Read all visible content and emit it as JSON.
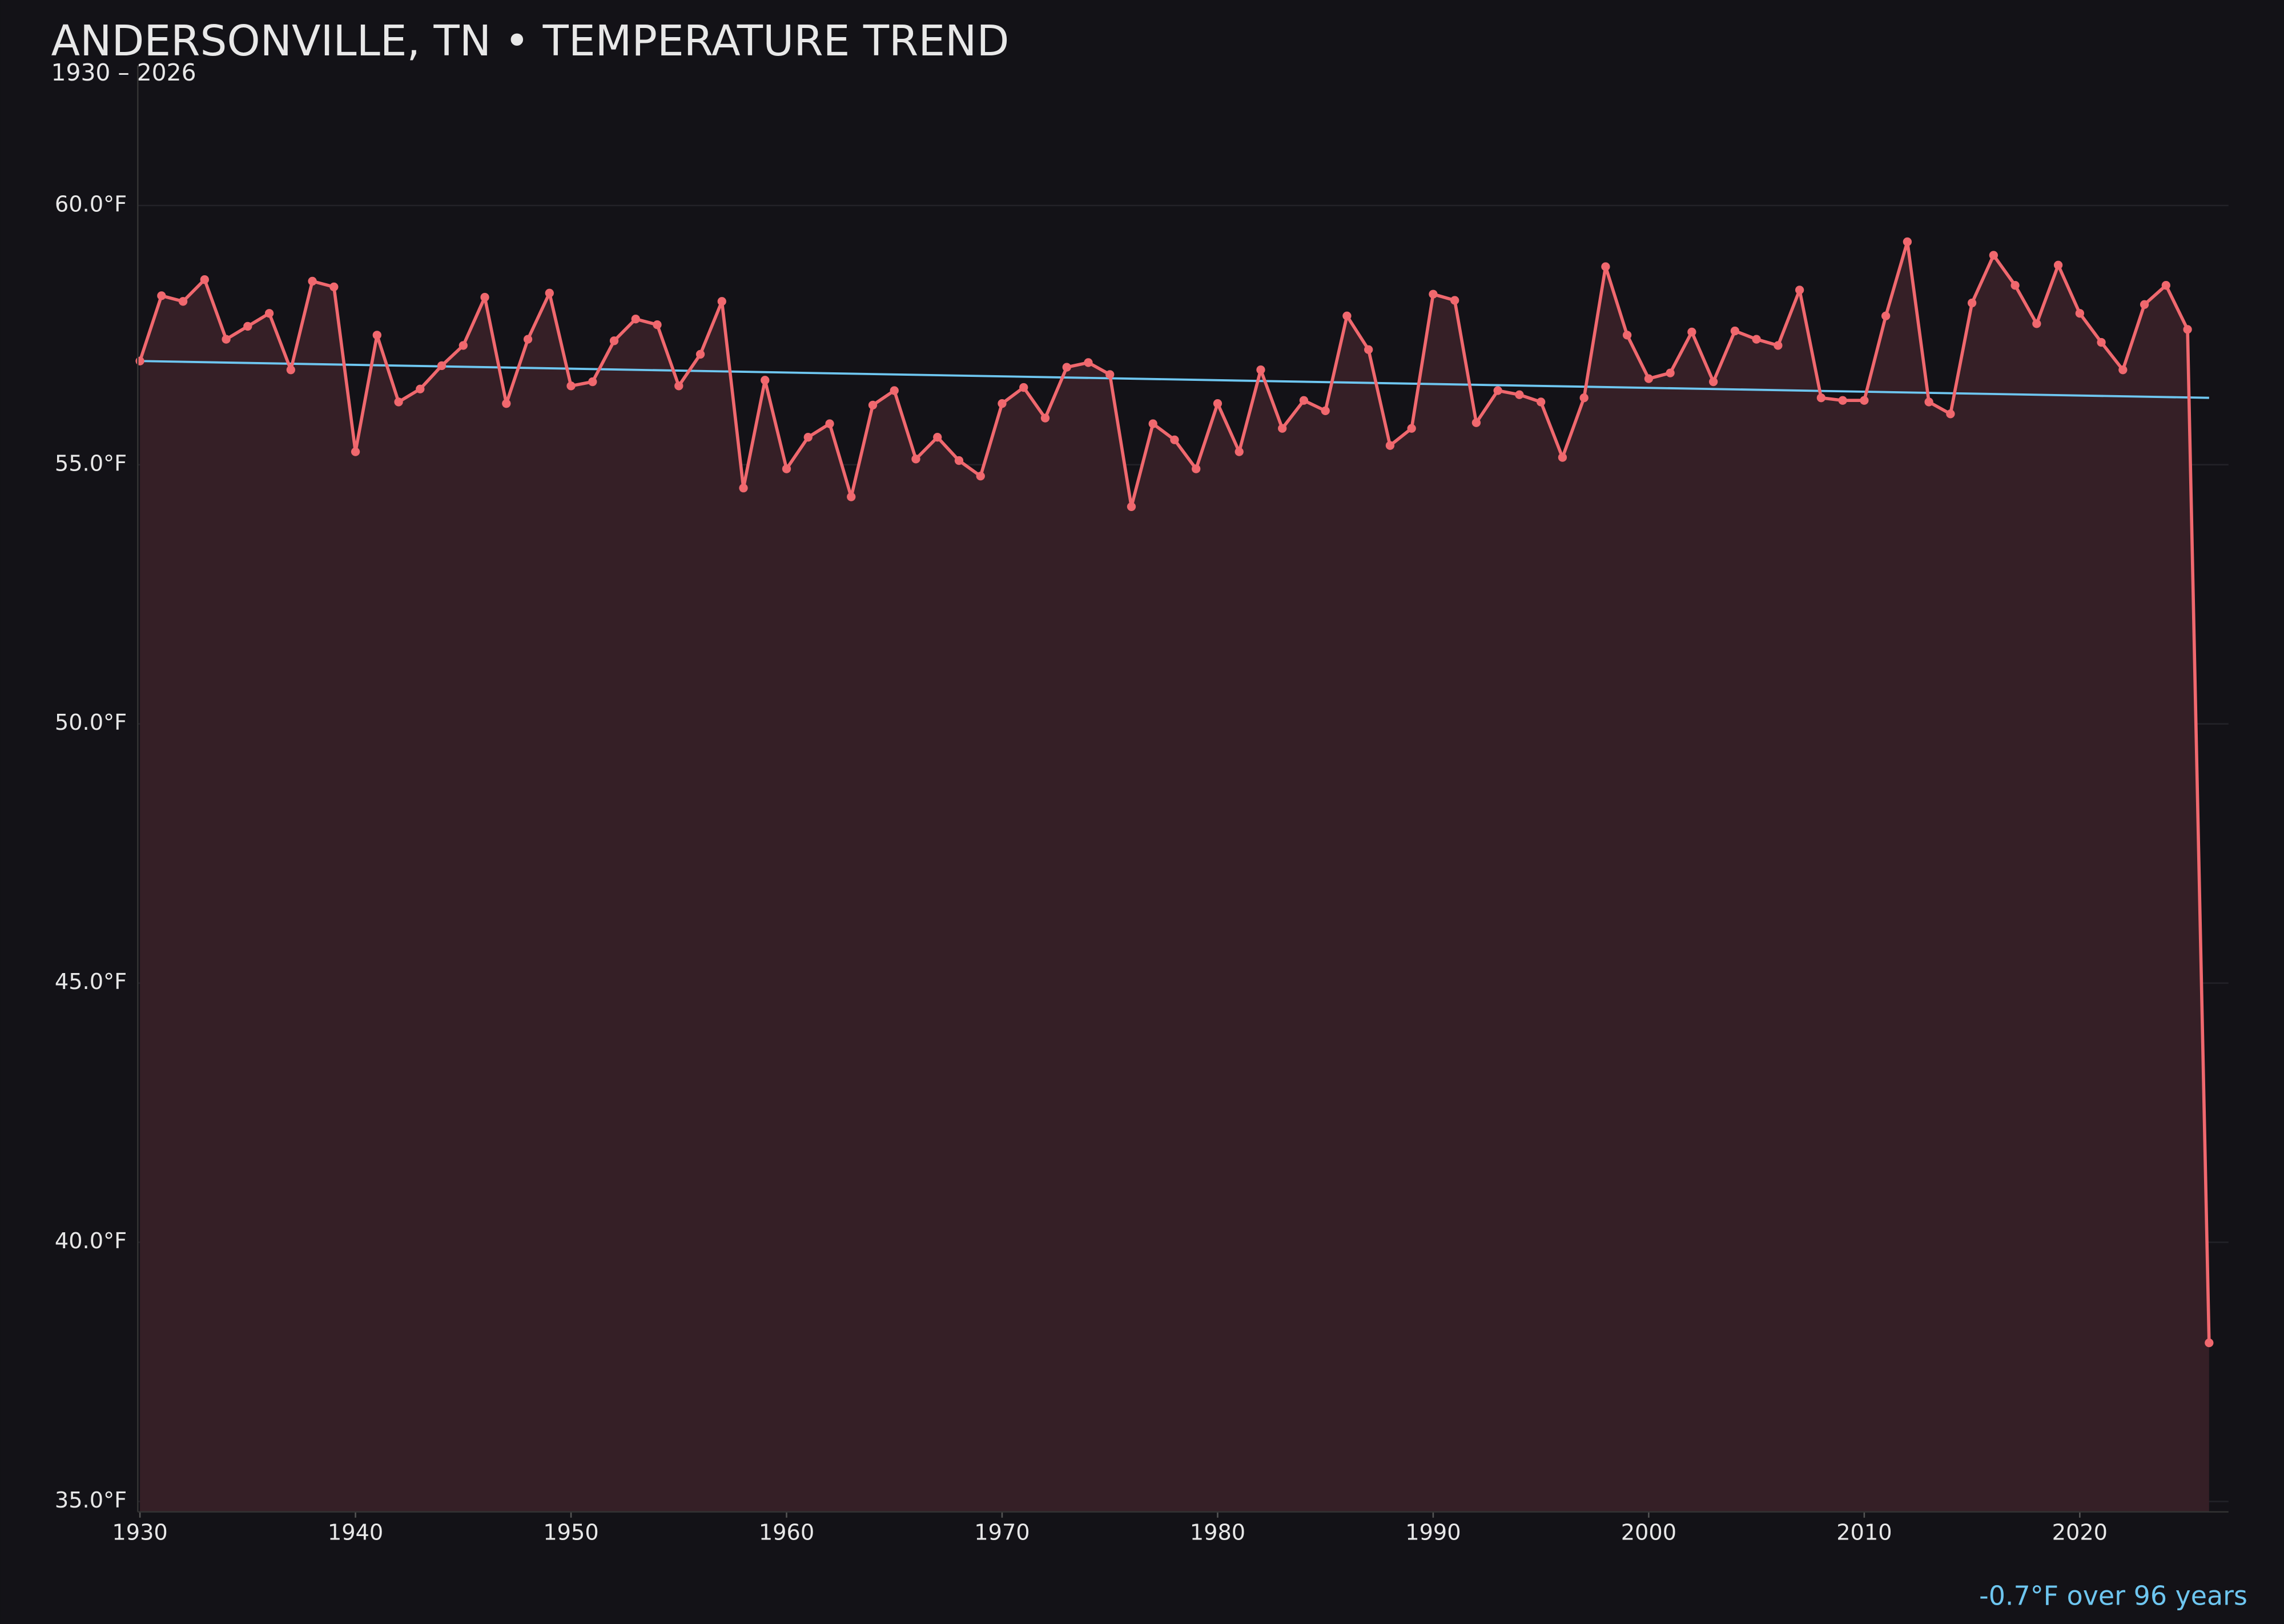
{
  "chart_data": {
    "type": "line",
    "title": "ANDERSONVILLE, TN • TEMPERATURE TREND",
    "subtitle": "1930 – 2026",
    "annotation": "-0.7°F over 96 years",
    "color": "#f0686e",
    "fill_color": "#351f26",
    "x": [
      1930,
      1931,
      1932,
      1933,
      1934,
      1935,
      1936,
      1937,
      1938,
      1939,
      1940,
      1941,
      1942,
      1943,
      1944,
      1945,
      1946,
      1947,
      1948,
      1949,
      1950,
      1951,
      1952,
      1953,
      1954,
      1955,
      1956,
      1957,
      1958,
      1959,
      1960,
      1961,
      1962,
      1963,
      1964,
      1965,
      1966,
      1967,
      1968,
      1969,
      1970,
      1971,
      1972,
      1973,
      1974,
      1975,
      1976,
      1977,
      1978,
      1979,
      1980,
      1981,
      1982,
      1983,
      1984,
      1985,
      1986,
      1987,
      1988,
      1989,
      1990,
      1991,
      1992,
      1993,
      1994,
      1995,
      1996,
      1997,
      1998,
      1999,
      2000,
      2001,
      2002,
      2003,
      2004,
      2005,
      2006,
      2007,
      2008,
      2009,
      2010,
      2011,
      2012,
      2013,
      2014,
      2015,
      2016,
      2017,
      2018,
      2019,
      2020,
      2021,
      2022,
      2023,
      2024,
      2025,
      2026
    ],
    "values": [
      57.0,
      58.26,
      58.15,
      58.57,
      57.42,
      57.67,
      57.92,
      56.83,
      58.54,
      58.43,
      55.25,
      57.5,
      56.21,
      56.46,
      56.91,
      57.3,
      58.23,
      56.18,
      57.42,
      58.31,
      56.52,
      56.6,
      57.39,
      57.81,
      57.7,
      56.52,
      57.13,
      58.15,
      54.55,
      56.63,
      54.92,
      55.53,
      55.79,
      54.38,
      56.15,
      56.43,
      55.11,
      55.53,
      55.08,
      54.78,
      56.18,
      56.49,
      55.9,
      56.88,
      56.97,
      56.74,
      54.19,
      55.79,
      55.48,
      54.92,
      56.18,
      55.25,
      56.83,
      55.7,
      56.24,
      56.04,
      57.87,
      57.22,
      55.37,
      55.7,
      58.29,
      58.17,
      55.81,
      56.43,
      56.35,
      56.21,
      55.14,
      56.29,
      58.82,
      57.5,
      56.66,
      56.77,
      57.56,
      56.6,
      57.58,
      57.42,
      57.3,
      58.37,
      56.29,
      56.24,
      56.24,
      57.87,
      59.3,
      56.21,
      55.98,
      58.12,
      59.04,
      58.46,
      57.72,
      58.85,
      57.92,
      57.36,
      56.83,
      58.09,
      58.46,
      57.61,
      38.06
    ],
    "trend": {
      "x": [
        1930,
        2026
      ],
      "values": [
        57.0,
        56.29
      ],
      "color": "#6ec6f0"
    },
    "xlim": [
      1929.9,
      2026.9
    ],
    "ylim": [
      34.8,
      62.7
    ],
    "xticks": [
      1930,
      1940,
      1950,
      1960,
      1970,
      1980,
      1990,
      2000,
      2010,
      2020
    ],
    "yticks": [
      {
        "value": 35,
        "label": "35.0°F"
      },
      {
        "value": 40,
        "label": "40.0°F"
      },
      {
        "value": 45,
        "label": "45.0°F"
      },
      {
        "value": 50,
        "label": "50.0°F"
      },
      {
        "value": 55,
        "label": "55.0°F"
      },
      {
        "value": 60,
        "label": "60.0°F"
      }
    ],
    "grid": true
  }
}
